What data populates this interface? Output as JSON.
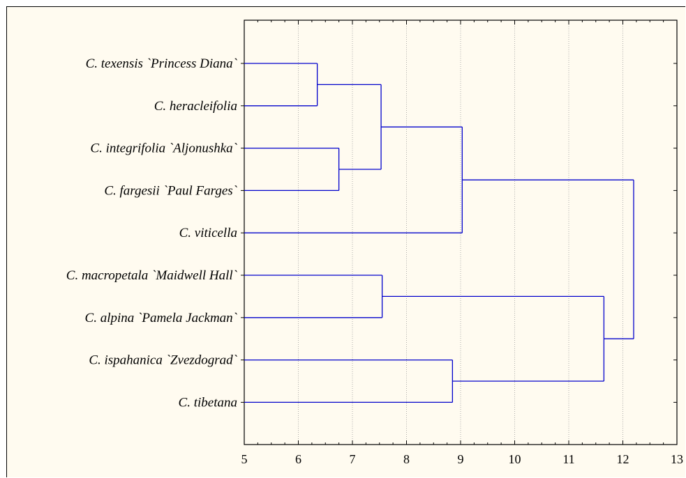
{
  "chart_data": {
    "type": "dendrogram",
    "orientation": "horizontal",
    "x_axis": {
      "min": 5,
      "max": 13,
      "ticks": [
        5,
        6,
        7,
        8,
        9,
        10,
        11,
        12,
        13
      ],
      "tick_labels": [
        "5",
        "6",
        "7",
        "8",
        "9",
        "10",
        "11",
        "12",
        "13"
      ],
      "minor_per_major": 4
    },
    "grid": "vertical dotted",
    "leaves": [
      "C. texensis `Princess Diana`",
      "C. heracleifolia",
      "C. integrifolia `Aljonushka`",
      "C. fargesii `Paul Farges`",
      "C. viticella",
      "C. macropetala `Maidwell Hall`",
      "C. alpina `Pamela Jackman`",
      "C. ispahanica `Zvezdograd`",
      "C. tibetana"
    ],
    "merges": [
      {
        "a": "L0",
        "b": "L1",
        "height": 6.35
      },
      {
        "a": "L2",
        "b": "L3",
        "height": 6.75
      },
      {
        "a": "M0",
        "b": "M1",
        "height": 7.53
      },
      {
        "a": "M2",
        "b": "L4",
        "height": 9.03
      },
      {
        "a": "L5",
        "b": "L6",
        "height": 7.55
      },
      {
        "a": "L7",
        "b": "L8",
        "height": 8.85
      },
      {
        "a": "M4",
        "b": "M5",
        "height": 11.65
      },
      {
        "a": "M3",
        "b": "M6",
        "height": 12.2
      }
    ],
    "line_color": "#0000cc",
    "background_color": "#fffbf0"
  }
}
